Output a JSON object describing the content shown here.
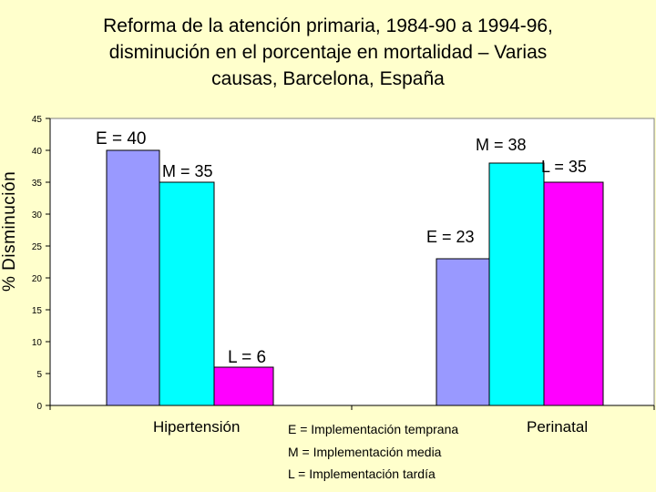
{
  "title_lines": [
    "Reforma de la atención primaria, 1984-90 a 1994-96,",
    "disminución en el porcentaje en mortalidad – Varias",
    "causas, Barcelona, España"
  ],
  "colors": {
    "background": "#ffffcc",
    "plot_area": "#ffffff",
    "E": "#9999ff",
    "M": "#00ffff",
    "L": "#ff00ff"
  },
  "legend_notes": [
    "E = Implementación temprana",
    "M = Implementación media",
    "L  = Implementación tardía"
  ],
  "chart_data": {
    "type": "bar",
    "title": "Reforma de la atención primaria, 1984-90 a 1994-96, disminución en el porcentaje en mortalidad – Varias causas, Barcelona, España",
    "xlabel": "",
    "ylabel": "% Disminución",
    "ylim": [
      0,
      45
    ],
    "yticks": [
      0,
      5,
      10,
      15,
      20,
      25,
      30,
      35,
      40,
      45
    ],
    "grid": false,
    "categories": [
      "Hipertensión",
      "Perinatal"
    ],
    "series": [
      {
        "name": "E",
        "values": [
          40,
          23
        ],
        "labels": [
          "E = 40",
          "E = 23"
        ]
      },
      {
        "name": "M",
        "values": [
          35,
          38
        ],
        "labels": [
          "M = 35",
          "M = 38"
        ]
      },
      {
        "name": "L",
        "values": [
          6,
          35
        ],
        "labels": [
          "L = 6",
          "L = 35"
        ]
      }
    ]
  }
}
